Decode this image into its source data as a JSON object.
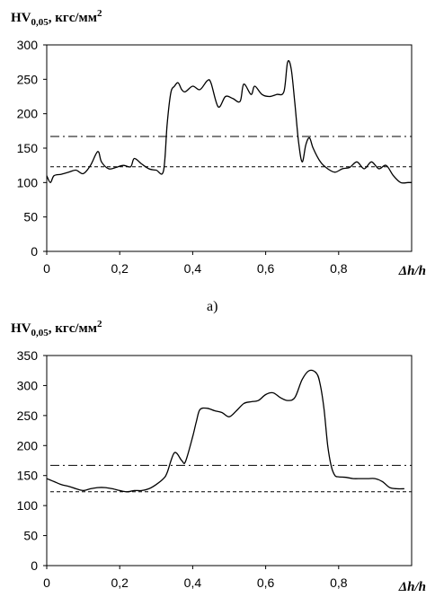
{
  "chart_data": [
    {
      "type": "line",
      "panel_label": "а)",
      "ylabel_main": "HV",
      "ylabel_sub": "0,05",
      "ylabel_unit": ", кгс/мм",
      "ylabel_sup": "2",
      "xlabel": "Δh/h",
      "xlim": [
        0,
        1
      ],
      "ylim": [
        0,
        300
      ],
      "xticks": [
        "0",
        "0,2",
        "0,4",
        "0,6",
        "0,8"
      ],
      "xtick_values": [
        0,
        0.2,
        0.4,
        0.6,
        0.8
      ],
      "yticks": [
        "0",
        "50",
        "100",
        "150",
        "200",
        "250",
        "300"
      ],
      "ytick_values": [
        0,
        50,
        100,
        150,
        200,
        250,
        300
      ],
      "hlines": [
        {
          "y": 167,
          "style": "dashdot"
        },
        {
          "y": 123,
          "style": "dashed"
        }
      ],
      "series": [
        {
          "x": [
            0,
            0.01,
            0.02,
            0.04,
            0.06,
            0.08,
            0.1,
            0.12,
            0.14,
            0.15,
            0.17,
            0.19,
            0.21,
            0.23,
            0.24,
            0.26,
            0.28,
            0.3,
            0.32,
            0.33,
            0.34,
            0.35,
            0.36,
            0.37,
            0.38,
            0.4,
            0.42,
            0.44,
            0.45,
            0.47,
            0.49,
            0.51,
            0.53,
            0.54,
            0.56,
            0.57,
            0.59,
            0.61,
            0.63,
            0.65,
            0.66,
            0.67,
            0.68,
            0.69,
            0.7,
            0.71,
            0.72,
            0.73,
            0.75,
            0.77,
            0.79,
            0.81,
            0.83,
            0.85,
            0.87,
            0.89,
            0.91,
            0.93,
            0.95,
            0.97,
            0.99,
            1.0
          ],
          "y": [
            110,
            100,
            110,
            112,
            115,
            118,
            113,
            125,
            145,
            130,
            120,
            122,
            125,
            123,
            135,
            127,
            120,
            118,
            117,
            185,
            230,
            240,
            245,
            235,
            232,
            240,
            235,
            248,
            245,
            210,
            225,
            222,
            218,
            243,
            228,
            240,
            228,
            225,
            228,
            232,
            275,
            265,
            215,
            160,
            130,
            155,
            165,
            150,
            130,
            120,
            115,
            120,
            122,
            130,
            120,
            130,
            120,
            125,
            110,
            100,
            100,
            100
          ]
        }
      ]
    },
    {
      "type": "line",
      "panel_label": "",
      "ylabel_main": "HV",
      "ylabel_sub": "0,05",
      "ylabel_unit": ", кгс/мм",
      "ylabel_sup": "2",
      "xlabel": "Δh/h",
      "xlim": [
        0,
        1
      ],
      "ylim": [
        0,
        350
      ],
      "xticks": [
        "0",
        "0,2",
        "0,4",
        "0,6",
        "0,8"
      ],
      "xtick_values": [
        0,
        0.2,
        0.4,
        0.6,
        0.8
      ],
      "yticks": [
        "0",
        "50",
        "100",
        "150",
        "200",
        "250",
        "300",
        "350"
      ],
      "ytick_values": [
        0,
        50,
        100,
        150,
        200,
        250,
        300,
        350
      ],
      "hlines": [
        {
          "y": 167,
          "style": "dashdot"
        },
        {
          "y": 123,
          "style": "dashed"
        }
      ],
      "series": [
        {
          "x": [
            0,
            0.02,
            0.04,
            0.06,
            0.08,
            0.1,
            0.12,
            0.14,
            0.16,
            0.18,
            0.2,
            0.22,
            0.24,
            0.26,
            0.28,
            0.3,
            0.32,
            0.33,
            0.35,
            0.37,
            0.38,
            0.4,
            0.41,
            0.42,
            0.44,
            0.46,
            0.48,
            0.5,
            0.52,
            0.54,
            0.56,
            0.58,
            0.6,
            0.62,
            0.64,
            0.66,
            0.68,
            0.7,
            0.72,
            0.74,
            0.75,
            0.76,
            0.77,
            0.78,
            0.79,
            0.8,
            0.82,
            0.84,
            0.86,
            0.88,
            0.9,
            0.92,
            0.94,
            0.96,
            0.98
          ],
          "y": [
            145,
            140,
            135,
            132,
            128,
            125,
            128,
            130,
            130,
            128,
            125,
            123,
            125,
            125,
            128,
            135,
            145,
            155,
            188,
            175,
            173,
            215,
            240,
            260,
            262,
            258,
            255,
            248,
            258,
            270,
            273,
            275,
            285,
            288,
            280,
            275,
            280,
            310,
            325,
            320,
            300,
            260,
            200,
            165,
            150,
            148,
            147,
            145,
            145,
            145,
            145,
            140,
            130,
            128,
            128
          ]
        }
      ]
    }
  ]
}
